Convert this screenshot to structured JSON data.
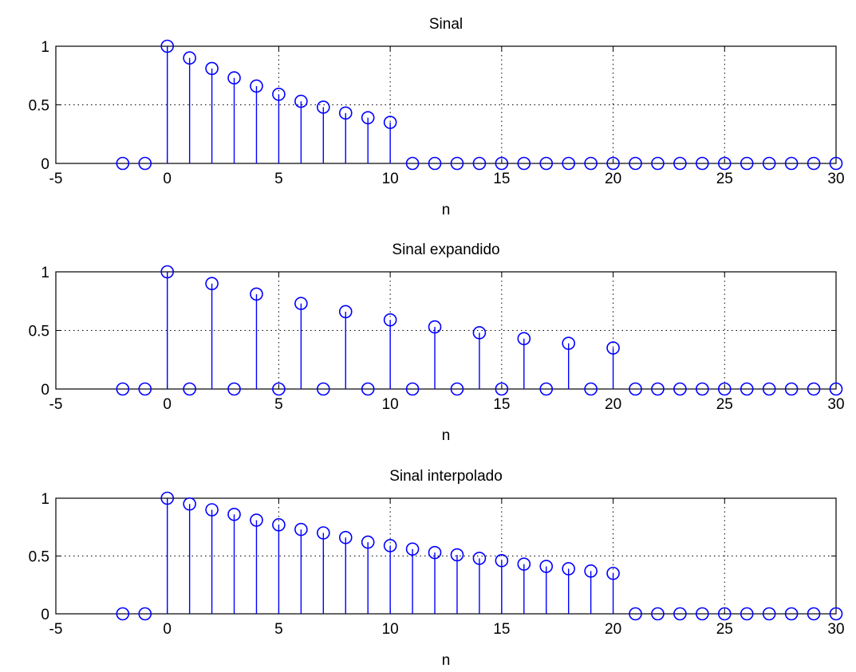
{
  "figure": {
    "colors": {
      "series": "#0000ff",
      "axes": "#000000",
      "background": "#ffffff"
    }
  },
  "chart_data": [
    {
      "type": "stem",
      "title": "Sinal",
      "xlabel": "n",
      "ylabel": "",
      "xlim": [
        -5,
        30
      ],
      "ylim": [
        0,
        1
      ],
      "xticks": [
        "-5",
        "0",
        "5",
        "10",
        "15",
        "20",
        "25",
        "30"
      ],
      "yticks": [
        "0",
        "0.5",
        "1"
      ],
      "grid": true,
      "series": [
        {
          "x": [
            -2,
            -1,
            0,
            1,
            2,
            3,
            4,
            5,
            6,
            7,
            8,
            9,
            10,
            11,
            12,
            13,
            14,
            15,
            16,
            17,
            18,
            19,
            20,
            21,
            22,
            23,
            24,
            25,
            26,
            27,
            28,
            29,
            30
          ],
          "values": [
            0,
            0,
            1,
            0.9,
            0.81,
            0.73,
            0.66,
            0.59,
            0.53,
            0.48,
            0.43,
            0.39,
            0.35,
            0,
            0,
            0,
            0,
            0,
            0,
            0,
            0,
            0,
            0,
            0,
            0,
            0,
            0,
            0,
            0,
            0,
            0,
            0,
            0
          ]
        }
      ]
    },
    {
      "type": "stem",
      "title": "Sinal expandido",
      "xlabel": "n",
      "ylabel": "",
      "xlim": [
        -5,
        30
      ],
      "ylim": [
        0,
        1
      ],
      "xticks": [
        "-5",
        "0",
        "5",
        "10",
        "15",
        "20",
        "25",
        "30"
      ],
      "yticks": [
        "0",
        "0.5",
        "1"
      ],
      "grid": true,
      "series": [
        {
          "x": [
            -2,
            -1,
            0,
            1,
            2,
            3,
            4,
            5,
            6,
            7,
            8,
            9,
            10,
            11,
            12,
            13,
            14,
            15,
            16,
            17,
            18,
            19,
            20,
            21,
            22,
            23,
            24,
            25,
            26,
            27,
            28,
            29,
            30
          ],
          "values": [
            0,
            0,
            1,
            0,
            0.9,
            0,
            0.81,
            0,
            0.73,
            0,
            0.66,
            0,
            0.59,
            0,
            0.53,
            0,
            0.48,
            0,
            0.43,
            0,
            0.39,
            0,
            0.35,
            0,
            0,
            0,
            0,
            0,
            0,
            0,
            0,
            0,
            0
          ]
        }
      ]
    },
    {
      "type": "stem",
      "title": "Sinal interpolado",
      "xlabel": "n",
      "ylabel": "",
      "xlim": [
        -5,
        30
      ],
      "ylim": [
        0,
        1
      ],
      "xticks": [
        "-5",
        "0",
        "5",
        "10",
        "15",
        "20",
        "25",
        "30"
      ],
      "yticks": [
        "0",
        "0.5",
        "1"
      ],
      "grid": true,
      "series": [
        {
          "x": [
            -2,
            -1,
            0,
            1,
            2,
            3,
            4,
            5,
            6,
            7,
            8,
            9,
            10,
            11,
            12,
            13,
            14,
            15,
            16,
            17,
            18,
            19,
            20,
            21,
            22,
            23,
            24,
            25,
            26,
            27,
            28,
            29,
            30
          ],
          "values": [
            0,
            0,
            1,
            0.95,
            0.9,
            0.86,
            0.81,
            0.77,
            0.73,
            0.7,
            0.66,
            0.62,
            0.59,
            0.56,
            0.53,
            0.51,
            0.48,
            0.46,
            0.43,
            0.41,
            0.39,
            0.37,
            0.35,
            0,
            0,
            0,
            0,
            0,
            0,
            0,
            0,
            0,
            0
          ]
        }
      ]
    }
  ]
}
